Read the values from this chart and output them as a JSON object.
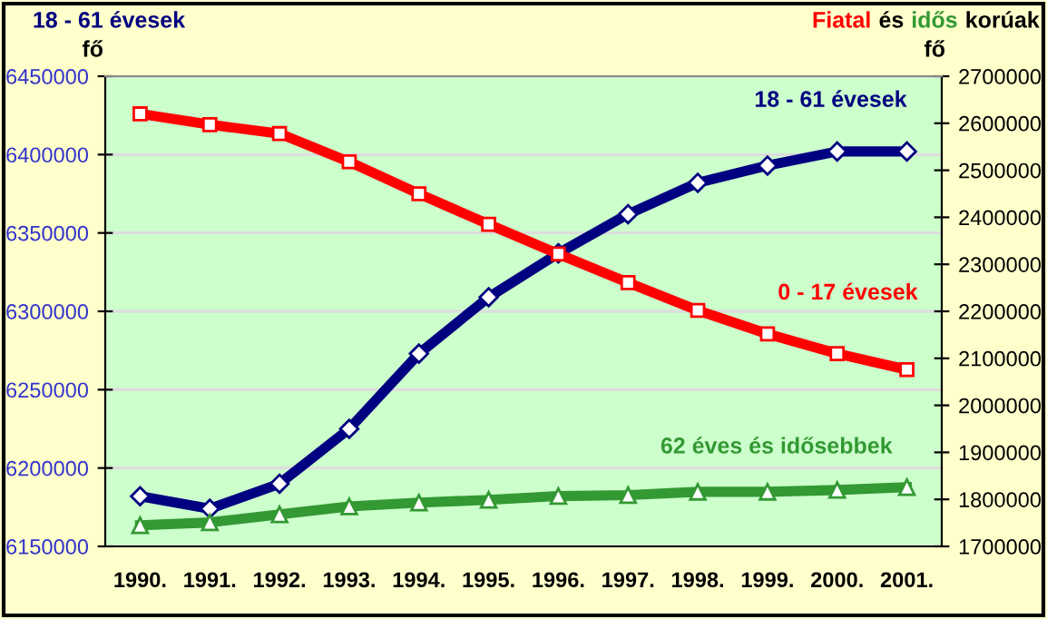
{
  "chart_data": {
    "type": "line",
    "ylabel": "18 - 61 évesek",
    "y2label": "Fiatal és idős korúak",
    "annotations": [
      "fő",
      "fő"
    ],
    "categories": [
      "1990.",
      "1991.",
      "1992.",
      "1993.",
      "1994.",
      "1995.",
      "1996.",
      "1997.",
      "1998.",
      "1999.",
      "2000.",
      "2001."
    ],
    "series": [
      {
        "name": "18 - 61 évesek",
        "color": "#000080",
        "marker": "diamond",
        "values": [
          6182000,
          6174000,
          6190000,
          6225000,
          6273000,
          6309000,
          6337000,
          6362000,
          6382000,
          6393000,
          6402000,
          6402000
        ]
      },
      {
        "name": "0 - 17 évesek",
        "color": "#ff0000",
        "marker": "square",
        "axis": "y2",
        "values": [
          2620000,
          2597000,
          2578000,
          2518000,
          2450000,
          2385000,
          2322000,
          2261000,
          2202000,
          2152000,
          2110000,
          2076000
        ]
      },
      {
        "name": "62 éves és idősebbek",
        "color": "#339933",
        "marker": "triangle",
        "axis": "y2",
        "values": [
          1745000,
          1751000,
          1768000,
          1785000,
          1793000,
          1799000,
          1807000,
          1809000,
          1816000,
          1816000,
          1820000,
          1826000
        ]
      }
    ],
    "ylim": [
      6150000,
      6450000
    ],
    "yticks": [
      6150000,
      6200000,
      6250000,
      6300000,
      6350000,
      6400000,
      6450000
    ],
    "y2lim": [
      1700000,
      2700000
    ],
    "y2ticks": [
      1700000,
      1800000,
      1900000,
      2000000,
      2100000,
      2200000,
      2300000,
      2400000,
      2500000,
      2600000,
      2700000
    ],
    "grid": "y",
    "legend": false,
    "line_style": "solid"
  }
}
